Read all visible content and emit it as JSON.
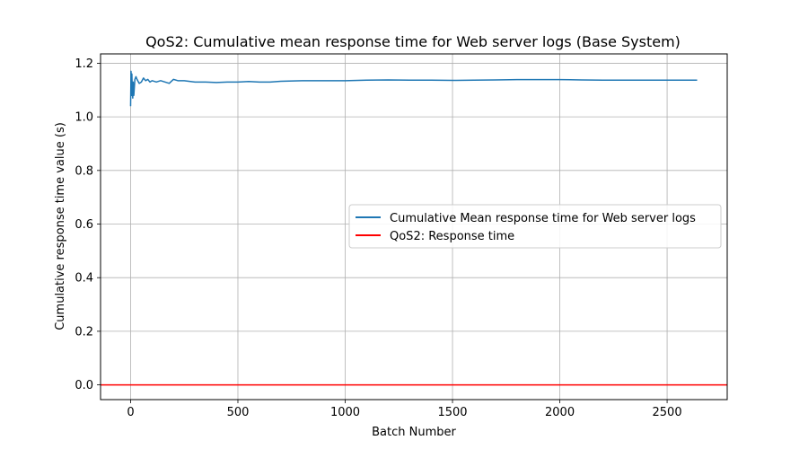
{
  "chart_data": {
    "type": "line",
    "title": "QoS2: Cumulative mean response time for Web server logs (Base System)",
    "xlabel": "Batch Number",
    "ylabel": "Cumulative response time value (s)",
    "xlim": [
      -140,
      2780
    ],
    "ylim": [
      -0.055,
      1.235
    ],
    "x_ticks": [
      0,
      500,
      1000,
      1500,
      2000,
      2500
    ],
    "y_ticks": [
      0.0,
      0.2,
      0.4,
      0.6,
      0.8,
      1.0,
      1.2
    ],
    "x_tick_labels": [
      "0",
      "500",
      "1000",
      "1500",
      "2000",
      "2500"
    ],
    "y_tick_labels": [
      "0.0",
      "0.2",
      "0.4",
      "0.6",
      "0.8",
      "1.0",
      "1.2"
    ],
    "grid": true,
    "legend_position": "center-right",
    "series": [
      {
        "name": "Cumulative Mean response time for Web server logs",
        "color": "#1f77b4",
        "x": [
          0,
          2,
          4,
          6,
          8,
          10,
          12,
          15,
          20,
          25,
          30,
          40,
          50,
          60,
          70,
          80,
          90,
          100,
          120,
          140,
          160,
          180,
          200,
          220,
          250,
          300,
          350,
          400,
          450,
          500,
          550,
          600,
          650,
          700,
          800,
          900,
          1000,
          1100,
          1200,
          1300,
          1400,
          1500,
          1600,
          1700,
          1800,
          1900,
          2000,
          2100,
          2200,
          2300,
          2400,
          2500,
          2600,
          2640
        ],
        "y": [
          1.04,
          1.17,
          1.08,
          1.16,
          1.09,
          1.07,
          1.13,
          1.08,
          1.14,
          1.15,
          1.14,
          1.125,
          1.13,
          1.145,
          1.135,
          1.14,
          1.13,
          1.135,
          1.13,
          1.135,
          1.13,
          1.125,
          1.14,
          1.135,
          1.135,
          1.13,
          1.13,
          1.128,
          1.13,
          1.13,
          1.132,
          1.13,
          1.13,
          1.133,
          1.135,
          1.135,
          1.135,
          1.137,
          1.138,
          1.137,
          1.137,
          1.136,
          1.137,
          1.138,
          1.139,
          1.139,
          1.139,
          1.138,
          1.137,
          1.137,
          1.137,
          1.137,
          1.137,
          1.137
        ]
      },
      {
        "name": "QoS2: Response time",
        "color": "#ff0000",
        "type": "hline",
        "y": 0.0
      }
    ]
  }
}
